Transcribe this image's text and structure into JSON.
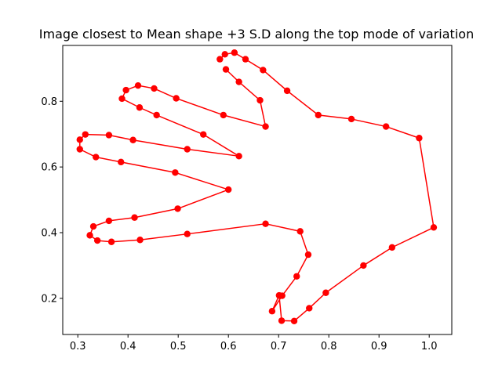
{
  "chart_data": {
    "type": "line",
    "title": "Image closest to Mean shape +3 S.D along the top mode of variation",
    "xlabel": "",
    "ylabel": "",
    "xlim": [
      0.27,
      1.045
    ],
    "ylim": [
      0.09,
      0.97
    ],
    "xticks": [
      0.3,
      0.4,
      0.5,
      0.6,
      0.7,
      0.8,
      0.9,
      1.0
    ],
    "xtick_labels": [
      "0.3",
      "0.4",
      "0.5",
      "0.6",
      "0.7",
      "0.8",
      "0.9",
      "1.0"
    ],
    "yticks": [
      0.2,
      0.4,
      0.6,
      0.8
    ],
    "ytick_labels": [
      "0.2",
      "0.4",
      "0.6",
      "0.8"
    ],
    "grid": false,
    "series": [
      {
        "color": "#ff0000",
        "marker": "circle",
        "x": [
          0.583,
          0.593,
          0.612,
          0.634,
          0.669,
          0.717,
          0.779,
          0.845,
          0.914,
          0.98,
          1.009,
          0.926,
          0.869,
          0.794,
          0.761,
          0.731,
          0.706,
          0.701,
          0.687,
          0.707,
          0.736,
          0.759,
          0.743,
          0.674,
          0.518,
          0.424,
          0.367,
          0.339,
          0.324,
          0.331,
          0.362,
          0.413,
          0.499,
          0.6,
          0.494,
          0.386,
          0.336,
          0.304,
          0.304,
          0.315,
          0.362,
          0.41,
          0.518,
          0.621,
          0.55,
          0.457,
          0.423,
          0.388,
          0.396,
          0.42,
          0.452,
          0.496,
          0.59,
          0.674,
          0.663,
          0.621,
          0.595
        ],
        "y": [
          0.928,
          0.943,
          0.948,
          0.928,
          0.895,
          0.832,
          0.758,
          0.746,
          0.723,
          0.688,
          0.416,
          0.355,
          0.3,
          0.217,
          0.17,
          0.131,
          0.132,
          0.209,
          0.161,
          0.208,
          0.267,
          0.333,
          0.404,
          0.427,
          0.396,
          0.378,
          0.372,
          0.376,
          0.392,
          0.419,
          0.436,
          0.446,
          0.473,
          0.531,
          0.583,
          0.615,
          0.63,
          0.654,
          0.683,
          0.699,
          0.697,
          0.682,
          0.654,
          0.633,
          0.699,
          0.758,
          0.781,
          0.808,
          0.834,
          0.848,
          0.839,
          0.809,
          0.758,
          0.723,
          0.803,
          0.859,
          0.897
        ]
      }
    ]
  }
}
